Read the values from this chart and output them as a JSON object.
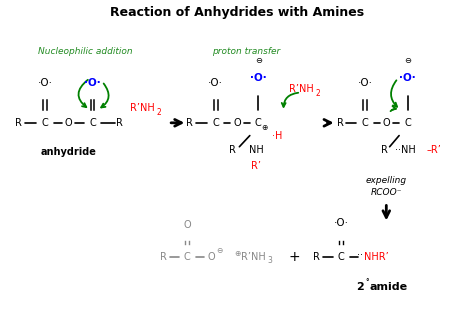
{
  "title": "Reaction of Anhydrides with Amines",
  "bg_color": "#ffffff",
  "figsize": [
    4.74,
    3.19
  ],
  "dpi": 100,
  "structures": {
    "label1": "Nucleophilic addition",
    "label2": "proton transfer",
    "label3": "expelling",
    "label4": "RCOO⁻",
    "label5": "anhydride",
    "label6": "2° amide"
  }
}
